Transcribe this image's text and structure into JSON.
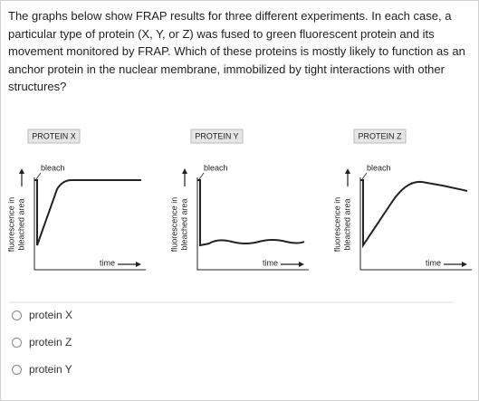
{
  "question": "The graphs below show FRAP results for three different experiments. In each case, a particular type of protein (X, Y, or Z) was fused to green fluorescent protein and its movement monitored by FRAP. Which of these proteins is mostly likely to function as an anchor protein in the nuclear membrane, immobilized by tight interactions with other structures?",
  "panels": [
    {
      "title": "PROTEIN X",
      "y_label": [
        "fluorescence in",
        "bleached area"
      ],
      "bleach_label": "bleach",
      "x_label": "time"
    },
    {
      "title": "PROTEIN Y",
      "y_label": [
        "fluorescence in",
        "bleached area"
      ],
      "bleach_label": "bleach",
      "x_label": "time"
    },
    {
      "title": "PROTEIN Z",
      "y_label": [
        "fluorescence in",
        "bleached area"
      ],
      "bleach_label": "bleach",
      "x_label": "time"
    }
  ],
  "options": [
    "protein X",
    "protein Z",
    "protein Y"
  ]
}
